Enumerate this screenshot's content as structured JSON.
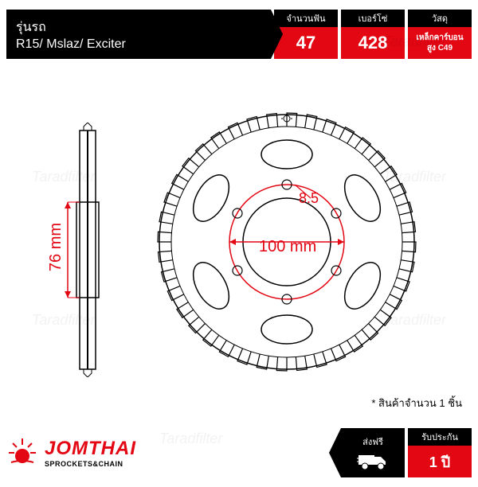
{
  "watermark_text": "Taradfilter",
  "top": {
    "model_label": "รุ่นรถ",
    "model_text": "R15/ Mslaz/ Exciter",
    "teeth_label": "จำนวนฟัน",
    "teeth_value": "47",
    "chain_label": "เบอร์โซ่",
    "chain_value": "428",
    "material_label": "วัสดุ",
    "material_line1": "เหล็กคาร์บอน",
    "material_line2": "สูง C49"
  },
  "diagram": {
    "side_height": "76 mm",
    "bolt_dia": "8.5",
    "center_dia": "100 mm",
    "colors": {
      "dim": "#e30613",
      "line": "#000000"
    }
  },
  "note": "* สินค้าจำนวน 1 ชิ้น",
  "bottom": {
    "brand": "JOMTHAI",
    "tagline": "SPROCKETS&CHAIN",
    "ship_label": "ส่งฟรี",
    "warranty_label": "รับประกัน",
    "warranty_value": "1 ปี"
  }
}
